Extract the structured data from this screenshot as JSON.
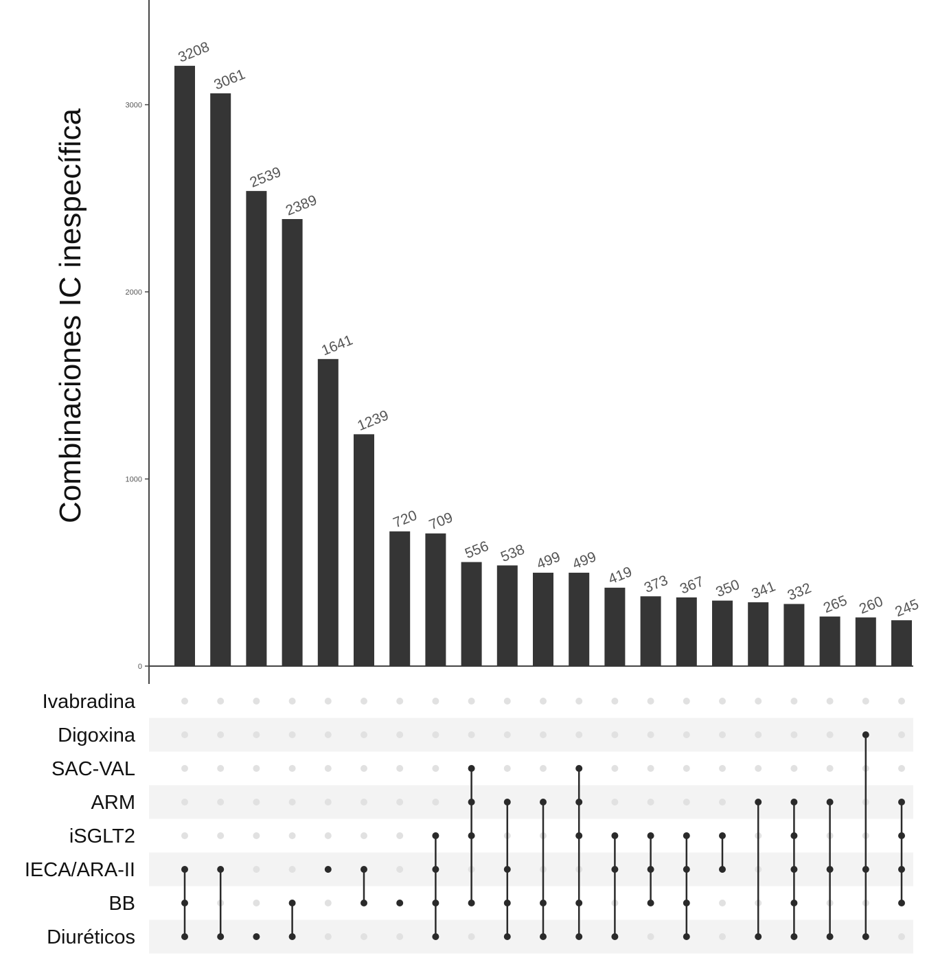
{
  "chart_data": {
    "type": "bar",
    "ylabel": "Combinaciones IC inespecífica",
    "xlabel": "",
    "ylim": [
      0,
      3600
    ],
    "yticks": [
      0,
      1000,
      2000,
      3000
    ],
    "values": [
      3208,
      3061,
      2539,
      2389,
      1641,
      1239,
      720,
      709,
      556,
      538,
      499,
      499,
      419,
      373,
      367,
      350,
      341,
      332,
      265,
      260,
      245
    ],
    "value_labels": [
      "3208",
      "3061",
      "2539",
      "2389",
      "1641",
      "1239",
      "720",
      "709",
      "556",
      "538",
      "499",
      "499",
      "419",
      "373",
      "367",
      "350",
      "341",
      "332",
      "265",
      "260",
      "245"
    ],
    "sets": [
      "Ivabradina",
      "Digoxina",
      "SAC-VAL",
      "ARM",
      "iSGLT2",
      "IECA/ARA-II",
      "BB",
      "Diuréticos"
    ],
    "combinations": [
      [
        "IECA/ARA-II",
        "BB",
        "Diuréticos"
      ],
      [
        "IECA/ARA-II",
        "Diuréticos"
      ],
      [
        "Diuréticos"
      ],
      [
        "BB",
        "Diuréticos"
      ],
      [
        "IECA/ARA-II"
      ],
      [
        "IECA/ARA-II",
        "BB"
      ],
      [
        "BB"
      ],
      [
        "iSGLT2",
        "IECA/ARA-II",
        "BB",
        "Diuréticos"
      ],
      [
        "SAC-VAL",
        "ARM",
        "iSGLT2",
        "BB"
      ],
      [
        "ARM",
        "IECA/ARA-II",
        "BB",
        "Diuréticos"
      ],
      [
        "ARM",
        "BB",
        "Diuréticos"
      ],
      [
        "SAC-VAL",
        "ARM",
        "iSGLT2",
        "BB",
        "Diuréticos"
      ],
      [
        "iSGLT2",
        "IECA/ARA-II",
        "Diuréticos"
      ],
      [
        "iSGLT2",
        "IECA/ARA-II",
        "BB"
      ],
      [
        "iSGLT2",
        "IECA/ARA-II",
        "BB",
        "Diuréticos"
      ],
      [
        "iSGLT2",
        "IECA/ARA-II"
      ],
      [
        "ARM",
        "Diuréticos"
      ],
      [
        "ARM",
        "iSGLT2",
        "IECA/ARA-II",
        "BB",
        "Diuréticos"
      ],
      [
        "ARM",
        "IECA/ARA-II",
        "Diuréticos"
      ],
      [
        "Digoxina",
        "IECA/ARA-II",
        "Diuréticos"
      ],
      [
        "ARM",
        "iSGLT2",
        "IECA/ARA-II",
        "BB"
      ]
    ],
    "colors": {
      "bar": "#353535",
      "dot_active": "#2a2a2a",
      "dot_inactive": "#e1e1e1",
      "stripe": "#f3f3f3",
      "axis": "#444444"
    },
    "grid": false
  }
}
